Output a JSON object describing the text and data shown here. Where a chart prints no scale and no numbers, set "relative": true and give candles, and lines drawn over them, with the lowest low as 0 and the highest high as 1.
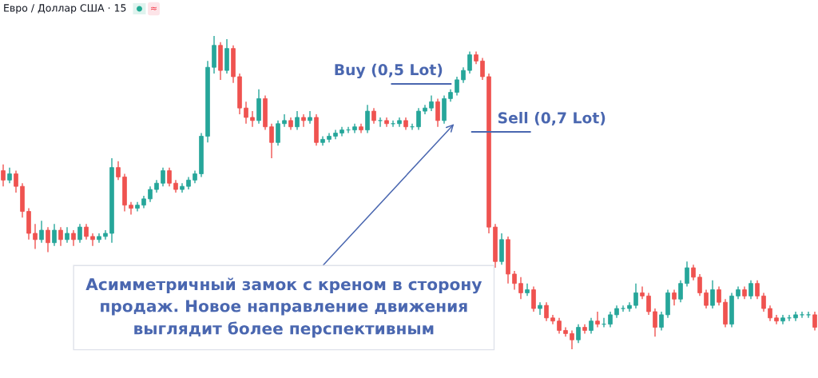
{
  "chart_data": {
    "type": "candlestick",
    "title": "Евро / Доллар США · 15",
    "relative": true,
    "categories": [
      null,
      null,
      null,
      null,
      null,
      null,
      null,
      null,
      null,
      null,
      null,
      null,
      null,
      null,
      null,
      null,
      null,
      null,
      null,
      null,
      null,
      null,
      null,
      null,
      null,
      null,
      null,
      null,
      null,
      null,
      null,
      null,
      null,
      null,
      null,
      null,
      null,
      null,
      null,
      null,
      null,
      null,
      null,
      null,
      null,
      null,
      null,
      null,
      null,
      null,
      null,
      null,
      null,
      null,
      null,
      null,
      null,
      null,
      null,
      null,
      null,
      null,
      null,
      null,
      null,
      null,
      null,
      null,
      null,
      null,
      null,
      null,
      null,
      null,
      null,
      null,
      null,
      null,
      null,
      null,
      null,
      null,
      null,
      null,
      null,
      null,
      null,
      null,
      null,
      null,
      null,
      null,
      null,
      null,
      null,
      null,
      null,
      null,
      null,
      null,
      null,
      null,
      null,
      null,
      null,
      null,
      null,
      null,
      null,
      null,
      null,
      null,
      null,
      null,
      null,
      null,
      null,
      null,
      null,
      null,
      null,
      null,
      null,
      null,
      null,
      null,
      null,
      null
    ],
    "ohlc": [
      [
        0.57,
        0.59,
        0.52,
        0.54
      ],
      [
        0.54,
        0.58,
        0.53,
        0.56
      ],
      [
        0.56,
        0.57,
        0.5,
        0.52
      ],
      [
        0.52,
        0.53,
        0.42,
        0.44
      ],
      [
        0.44,
        0.45,
        0.35,
        0.37
      ],
      [
        0.37,
        0.4,
        0.32,
        0.35
      ],
      [
        0.35,
        0.41,
        0.34,
        0.38
      ],
      [
        0.38,
        0.39,
        0.31,
        0.34
      ],
      [
        0.34,
        0.4,
        0.33,
        0.38
      ],
      [
        0.38,
        0.39,
        0.33,
        0.35
      ],
      [
        0.35,
        0.39,
        0.34,
        0.37
      ],
      [
        0.37,
        0.38,
        0.33,
        0.35
      ],
      [
        0.35,
        0.4,
        0.34,
        0.39
      ],
      [
        0.39,
        0.4,
        0.35,
        0.36
      ],
      [
        0.36,
        0.37,
        0.33,
        0.35
      ],
      [
        0.35,
        0.37,
        0.34,
        0.36
      ],
      [
        0.36,
        0.38,
        0.35,
        0.37
      ],
      [
        0.37,
        0.61,
        0.34,
        0.58
      ],
      [
        0.58,
        0.6,
        0.54,
        0.55
      ],
      [
        0.55,
        0.56,
        0.44,
        0.46
      ],
      [
        0.46,
        0.47,
        0.43,
        0.45
      ],
      [
        0.45,
        0.47,
        0.44,
        0.46
      ],
      [
        0.46,
        0.49,
        0.45,
        0.48
      ],
      [
        0.48,
        0.52,
        0.47,
        0.51
      ],
      [
        0.51,
        0.54,
        0.5,
        0.53
      ],
      [
        0.53,
        0.58,
        0.52,
        0.57
      ],
      [
        0.57,
        0.58,
        0.52,
        0.53
      ],
      [
        0.53,
        0.54,
        0.5,
        0.51
      ],
      [
        0.51,
        0.53,
        0.5,
        0.52
      ],
      [
        0.52,
        0.55,
        0.51,
        0.54
      ],
      [
        0.54,
        0.57,
        0.53,
        0.56
      ],
      [
        0.56,
        0.69,
        0.55,
        0.68
      ],
      [
        0.68,
        0.92,
        0.66,
        0.9
      ],
      [
        0.9,
        1.0,
        0.88,
        0.97
      ],
      [
        0.97,
        0.98,
        0.86,
        0.89
      ],
      [
        0.89,
        0.99,
        0.88,
        0.96
      ],
      [
        0.96,
        0.97,
        0.85,
        0.87
      ],
      [
        0.87,
        0.88,
        0.75,
        0.77
      ],
      [
        0.77,
        0.79,
        0.72,
        0.74
      ],
      [
        0.74,
        0.76,
        0.71,
        0.73
      ],
      [
        0.73,
        0.83,
        0.72,
        0.8
      ],
      [
        0.8,
        0.81,
        0.7,
        0.71
      ],
      [
        0.71,
        0.72,
        0.61,
        0.66
      ],
      [
        0.66,
        0.73,
        0.65,
        0.72
      ],
      [
        0.72,
        0.75,
        0.71,
        0.73
      ],
      [
        0.73,
        0.74,
        0.7,
        0.71
      ],
      [
        0.71,
        0.76,
        0.7,
        0.74
      ],
      [
        0.74,
        0.75,
        0.71,
        0.73
      ],
      [
        0.73,
        0.76,
        0.72,
        0.74
      ],
      [
        0.74,
        0.75,
        0.65,
        0.66
      ],
      [
        0.66,
        0.68,
        0.65,
        0.67
      ],
      [
        0.67,
        0.69,
        0.66,
        0.68
      ],
      [
        0.68,
        0.7,
        0.67,
        0.69
      ],
      [
        0.69,
        0.71,
        0.68,
        0.7
      ],
      [
        0.7,
        0.71,
        0.69,
        0.7
      ],
      [
        0.7,
        0.72,
        0.69,
        0.71
      ],
      [
        0.71,
        0.72,
        0.69,
        0.7
      ],
      [
        0.7,
        0.78,
        0.69,
        0.76
      ],
      [
        0.76,
        0.77,
        0.72,
        0.73
      ],
      [
        0.73,
        0.74,
        0.71,
        0.73
      ],
      [
        0.73,
        0.74,
        0.71,
        0.72
      ],
      [
        0.72,
        0.73,
        0.71,
        0.72
      ],
      [
        0.72,
        0.74,
        0.71,
        0.73
      ],
      [
        0.73,
        0.74,
        0.7,
        0.71
      ],
      [
        0.71,
        0.72,
        0.7,
        0.71
      ],
      [
        0.71,
        0.77,
        0.7,
        0.76
      ],
      [
        0.76,
        0.78,
        0.75,
        0.77
      ],
      [
        0.77,
        0.81,
        0.76,
        0.79
      ],
      [
        0.79,
        0.8,
        0.71,
        0.73
      ],
      [
        0.73,
        0.81,
        0.72,
        0.8
      ],
      [
        0.8,
        0.83,
        0.79,
        0.82
      ],
      [
        0.82,
        0.87,
        0.81,
        0.86
      ],
      [
        0.86,
        0.9,
        0.85,
        0.89
      ],
      [
        0.89,
        0.95,
        0.88,
        0.94
      ],
      [
        0.94,
        0.95,
        0.91,
        0.92
      ],
      [
        0.92,
        0.93,
        0.86,
        0.87
      ],
      [
        0.87,
        0.88,
        0.37,
        0.39
      ],
      [
        0.39,
        0.4,
        0.26,
        0.28
      ],
      [
        0.28,
        0.37,
        0.27,
        0.35
      ],
      [
        0.35,
        0.36,
        0.21,
        0.24
      ],
      [
        0.24,
        0.25,
        0.19,
        0.21
      ],
      [
        0.21,
        0.23,
        0.16,
        0.18
      ],
      [
        0.18,
        0.21,
        0.17,
        0.19
      ],
      [
        0.19,
        0.2,
        0.12,
        0.13
      ],
      [
        0.13,
        0.15,
        0.11,
        0.14
      ],
      [
        0.14,
        0.15,
        0.09,
        0.1
      ],
      [
        0.1,
        0.11,
        0.08,
        0.09
      ],
      [
        0.09,
        0.1,
        0.05,
        0.06
      ],
      [
        0.06,
        0.07,
        0.04,
        0.05
      ],
      [
        0.05,
        0.06,
        0.0,
        0.03
      ],
      [
        0.03,
        0.08,
        0.02,
        0.07
      ],
      [
        0.07,
        0.08,
        0.05,
        0.06
      ],
      [
        0.06,
        0.1,
        0.05,
        0.09
      ],
      [
        0.09,
        0.12,
        0.07,
        0.08
      ],
      [
        0.08,
        0.1,
        0.07,
        0.08
      ],
      [
        0.08,
        0.12,
        0.07,
        0.11
      ],
      [
        0.11,
        0.14,
        0.1,
        0.13
      ],
      [
        0.13,
        0.14,
        0.12,
        0.13
      ],
      [
        0.13,
        0.15,
        0.12,
        0.14
      ],
      [
        0.14,
        0.21,
        0.13,
        0.18
      ],
      [
        0.18,
        0.2,
        0.16,
        0.17
      ],
      [
        0.17,
        0.18,
        0.11,
        0.12
      ],
      [
        0.12,
        0.13,
        0.04,
        0.07
      ],
      [
        0.07,
        0.12,
        0.06,
        0.11
      ],
      [
        0.11,
        0.19,
        0.1,
        0.18
      ],
      [
        0.18,
        0.19,
        0.14,
        0.16
      ],
      [
        0.16,
        0.22,
        0.15,
        0.21
      ],
      [
        0.21,
        0.28,
        0.2,
        0.26
      ],
      [
        0.26,
        0.27,
        0.22,
        0.23
      ],
      [
        0.23,
        0.24,
        0.17,
        0.18
      ],
      [
        0.18,
        0.19,
        0.13,
        0.14
      ],
      [
        0.14,
        0.22,
        0.13,
        0.19
      ],
      [
        0.19,
        0.2,
        0.14,
        0.15
      ],
      [
        0.15,
        0.16,
        0.07,
        0.08
      ],
      [
        0.08,
        0.18,
        0.07,
        0.17
      ],
      [
        0.17,
        0.2,
        0.16,
        0.19
      ],
      [
        0.19,
        0.2,
        0.16,
        0.17
      ],
      [
        0.17,
        0.22,
        0.16,
        0.21
      ],
      [
        0.21,
        0.22,
        0.16,
        0.17
      ],
      [
        0.17,
        0.18,
        0.12,
        0.13
      ],
      [
        0.13,
        0.14,
        0.09,
        0.1
      ],
      [
        0.1,
        0.11,
        0.08,
        0.09
      ],
      [
        0.09,
        0.11,
        0.08,
        0.1
      ],
      [
        0.1,
        0.11,
        0.09,
        0.1
      ],
      [
        0.1,
        0.12,
        0.09,
        0.11
      ],
      [
        0.11,
        0.12,
        0.1,
        0.11
      ],
      [
        0.11,
        0.12,
        0.1,
        0.11
      ],
      [
        0.11,
        0.12,
        0.06,
        0.07
      ]
    ],
    "colors": [
      "#ef5350",
      "#26a69a",
      "#ef5350",
      "#ef5350",
      "#ef5350",
      "#ef5350",
      "#26a69a",
      "#ef5350",
      "#26a69a",
      "#ef5350",
      "#26a69a",
      "#ef5350",
      "#26a69a",
      "#ef5350",
      "#ef5350",
      "#26a69a",
      "#26a69a",
      "#26a69a",
      "#ef5350",
      "#ef5350",
      "#ef5350",
      "#26a69a",
      "#26a69a",
      "#26a69a",
      "#26a69a",
      "#26a69a",
      "#ef5350",
      "#ef5350",
      "#26a69a",
      "#26a69a",
      "#26a69a",
      "#26a69a",
      "#26a69a",
      "#26a69a",
      "#ef5350",
      "#26a69a",
      "#ef5350",
      "#ef5350",
      "#ef5350",
      "#ef5350",
      "#26a69a",
      "#ef5350",
      "#ef5350",
      "#26a69a",
      "#26a69a",
      "#ef5350",
      "#26a69a",
      "#ef5350",
      "#26a69a",
      "#ef5350",
      "#26a69a",
      "#26a69a",
      "#26a69a",
      "#26a69a",
      "#26a69a",
      "#26a69a",
      "#ef5350",
      "#26a69a",
      "#ef5350",
      "#26a69a",
      "#ef5350",
      "#26a69a",
      "#26a69a",
      "#ef5350",
      "#26a69a",
      "#26a69a",
      "#26a69a",
      "#26a69a",
      "#ef5350",
      "#26a69a",
      "#26a69a",
      "#26a69a",
      "#26a69a",
      "#26a69a",
      "#ef5350",
      "#ef5350",
      "#ef5350",
      "#ef5350",
      "#26a69a",
      "#ef5350",
      "#ef5350",
      "#ef5350",
      "#26a69a",
      "#ef5350",
      "#26a69a",
      "#ef5350",
      "#ef5350",
      "#ef5350",
      "#ef5350",
      "#ef5350",
      "#26a69a",
      "#ef5350",
      "#26a69a",
      "#ef5350",
      "#26a69a",
      "#26a69a",
      "#26a69a",
      "#26a69a",
      "#26a69a",
      "#26a69a",
      "#ef5350",
      "#ef5350",
      "#ef5350",
      "#26a69a",
      "#26a69a",
      "#ef5350",
      "#26a69a",
      "#26a69a",
      "#ef5350",
      "#ef5350",
      "#ef5350",
      "#26a69a",
      "#ef5350",
      "#ef5350",
      "#26a69a",
      "#26a69a",
      "#ef5350",
      "#26a69a",
      "#ef5350",
      "#ef5350",
      "#ef5350",
      "#ef5350",
      "#26a69a",
      "#26a69a",
      "#26a69a",
      "#26a69a",
      "#26a69a",
      "#ef5350"
    ],
    "annotations": [
      "Buy (0,5 Lot)",
      "Sell (0,7 Lot)",
      "Асимметричный замок с креном в сторону\nпродаж. Новое направление движения\nвыглядит более перспективным",
      "≈"
    ]
  }
}
